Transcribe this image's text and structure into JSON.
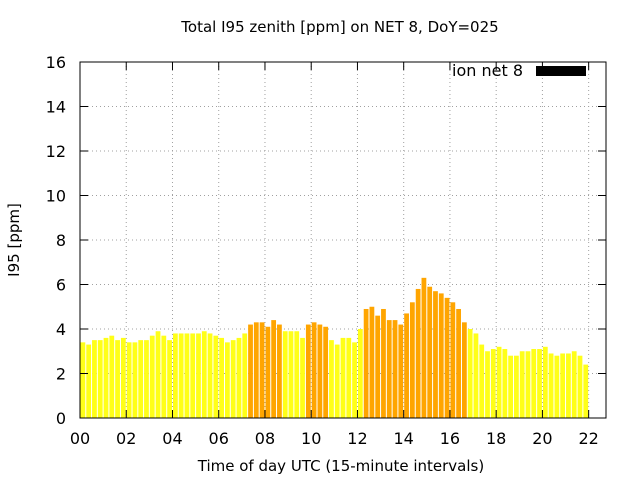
{
  "chart_data": {
    "type": "bar",
    "title": "Total I95 zenith [ppm] on NET 8, DoY=025",
    "xlabel": "Time of day UTC (15-minute intervals)",
    "ylabel": "I95 [ppm]",
    "xlim": [
      0,
      22.75
    ],
    "ylim": [
      0,
      16
    ],
    "grid": true,
    "legend": {
      "position": "top-right",
      "entries": [
        {
          "name": "ion net 8",
          "color": "#000000"
        }
      ]
    },
    "x_ticks": [
      "00",
      "02",
      "04",
      "06",
      "08",
      "10",
      "12",
      "14",
      "16",
      "18",
      "20",
      "22"
    ],
    "y_ticks": [
      "0",
      "2",
      "4",
      "6",
      "8",
      "10",
      "12",
      "14",
      "16"
    ],
    "colors": {
      "low": "#ffff18",
      "high": "#ffa500"
    },
    "series": [
      {
        "name": "ion net 8",
        "bar_interval_hours": 0.25,
        "values": [
          3.4,
          3.3,
          3.5,
          3.5,
          3.6,
          3.7,
          3.5,
          3.6,
          3.4,
          3.4,
          3.5,
          3.5,
          3.7,
          3.9,
          3.7,
          3.5,
          3.8,
          3.8,
          3.8,
          3.8,
          3.8,
          3.9,
          3.8,
          3.7,
          3.6,
          3.4,
          3.5,
          3.6,
          3.8,
          4.2,
          4.3,
          4.3,
          4.1,
          4.4,
          4.2,
          3.9,
          3.9,
          3.9,
          3.6,
          4.2,
          4.3,
          4.2,
          4.1,
          3.5,
          3.3,
          3.6,
          3.6,
          3.4,
          4.0,
          4.9,
          5.0,
          4.6,
          4.9,
          4.4,
          4.4,
          4.2,
          4.7,
          5.2,
          5.8,
          6.3,
          5.9,
          5.7,
          5.6,
          5.4,
          5.2,
          4.9,
          4.3,
          4.0,
          3.8,
          3.3,
          3.0,
          3.1,
          3.2,
          3.1,
          2.8,
          2.8,
          3.0,
          3.0,
          3.1,
          3.1,
          3.2,
          2.9,
          2.8,
          2.9,
          2.9,
          3.0,
          2.8,
          2.4
        ],
        "highlighted": [
          0,
          0,
          0,
          0,
          0,
          0,
          0,
          0,
          0,
          0,
          0,
          0,
          0,
          0,
          0,
          0,
          0,
          0,
          0,
          0,
          0,
          0,
          0,
          0,
          0,
          0,
          0,
          0,
          0,
          1,
          1,
          1,
          1,
          1,
          1,
          0,
          0,
          0,
          0,
          1,
          1,
          1,
          1,
          0,
          0,
          0,
          0,
          0,
          0,
          1,
          1,
          1,
          1,
          1,
          1,
          1,
          1,
          1,
          1,
          1,
          1,
          1,
          1,
          1,
          1,
          1,
          1,
          0,
          0,
          0,
          0,
          0,
          0,
          0,
          0,
          0,
          0,
          0,
          0,
          0,
          0,
          0,
          0,
          0,
          0,
          0,
          0,
          0
        ]
      }
    ]
  }
}
